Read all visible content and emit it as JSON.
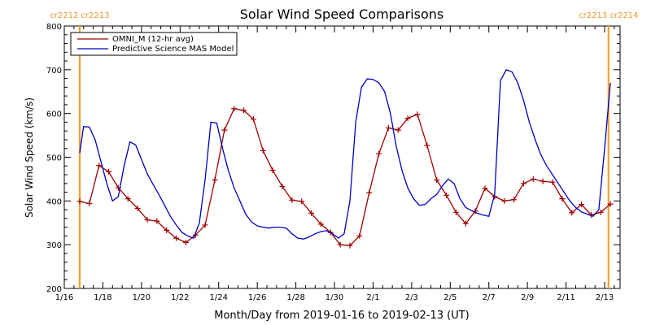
{
  "chart_data": {
    "type": "line",
    "title": "Solar Wind Speed Comparisons",
    "xlabel": "Month/Day from 2019-01-16 to 2019-02-13 (UT)",
    "ylabel": "Solar Wind Speed (km/s)",
    "ylim": [
      200,
      800
    ],
    "yticks": [
      "200",
      "300",
      "400",
      "500",
      "600",
      "700",
      "800"
    ],
    "xlim_days": [
      0,
      28.8
    ],
    "xticks": [
      {
        "day": 0,
        "label": "1/16"
      },
      {
        "day": 2,
        "label": "1/18"
      },
      {
        "day": 4,
        "label": "1/20"
      },
      {
        "day": 6,
        "label": "1/22"
      },
      {
        "day": 8,
        "label": "1/24"
      },
      {
        "day": 10,
        "label": "1/26"
      },
      {
        "day": 12,
        "label": "1/28"
      },
      {
        "day": 14,
        "label": "1/30"
      },
      {
        "day": 16,
        "label": "2/1"
      },
      {
        "day": 18,
        "label": "2/3"
      },
      {
        "day": 20,
        "label": "2/5"
      },
      {
        "day": 22,
        "label": "2/7"
      },
      {
        "day": 24,
        "label": "2/9"
      },
      {
        "day": 26,
        "label": "2/11"
      },
      {
        "day": 28,
        "label": "2/13"
      }
    ],
    "carrington_lines": [
      {
        "day": 0.8,
        "label": "cr2212 cr2213",
        "color": "#f0a030"
      },
      {
        "day": 28.2,
        "label": "cr2213 cr2214",
        "color": "#f0a030"
      }
    ],
    "legend_position": "top-left",
    "series": [
      {
        "name": "OMNI_M (12-hr avg)",
        "color": "#a00000",
        "marker": "plus",
        "x": [
          0.8,
          1.3,
          1.8,
          2.3,
          2.8,
          3.3,
          3.8,
          4.3,
          4.8,
          5.3,
          5.8,
          6.3,
          6.8,
          7.3,
          7.8,
          8.3,
          8.8,
          9.3,
          9.8,
          10.3,
          10.8,
          11.3,
          11.8,
          12.3,
          12.8,
          13.3,
          13.8,
          14.3,
          14.8,
          15.3,
          15.8,
          16.3,
          16.8,
          17.3,
          17.8,
          18.3,
          18.8,
          19.3,
          19.8,
          20.3,
          20.8,
          21.3,
          21.8,
          22.3,
          22.8,
          23.3,
          23.8,
          24.3,
          24.8,
          25.3,
          25.8,
          26.3,
          26.8,
          27.3,
          27.8,
          28.3
        ],
        "values": [
          399,
          394,
          481,
          467,
          430,
          405,
          383,
          357,
          354,
          333,
          315,
          305,
          322,
          345,
          448,
          562,
          611,
          607,
          587,
          515,
          470,
          433,
          402,
          399,
          372,
          347,
          328,
          300,
          298,
          320,
          419,
          508,
          567,
          562,
          589,
          598,
          527,
          448,
          413,
          374,
          348,
          377,
          429,
          410,
          400,
          403,
          440,
          450,
          445,
          443,
          405,
          373,
          392,
          368,
          374,
          393
        ]
      },
      {
        "name": "Predictive Science MAS Model",
        "color": "#0000c0",
        "marker": "none",
        "x": [
          0.8,
          1.0,
          1.3,
          1.6,
          1.9,
          2.2,
          2.5,
          2.8,
          3.1,
          3.4,
          3.7,
          4.0,
          4.3,
          4.6,
          4.9,
          5.2,
          5.5,
          5.8,
          6.1,
          6.4,
          6.7,
          7.0,
          7.3,
          7.6,
          7.9,
          8.2,
          8.5,
          8.8,
          9.1,
          9.4,
          9.7,
          10.0,
          10.3,
          10.6,
          10.9,
          11.2,
          11.5,
          11.8,
          12.1,
          12.4,
          12.7,
          13.0,
          13.3,
          13.6,
          13.9,
          14.2,
          14.5,
          14.8,
          15.1,
          15.4,
          15.7,
          16.0,
          16.3,
          16.6,
          16.9,
          17.2,
          17.5,
          17.8,
          18.1,
          18.4,
          18.7,
          19.0,
          19.3,
          19.6,
          19.9,
          20.2,
          20.5,
          20.8,
          21.1,
          21.4,
          21.7,
          22.0,
          22.3,
          22.6,
          22.9,
          23.2,
          23.5,
          23.8,
          24.1,
          24.4,
          24.7,
          25.0,
          25.3,
          25.6,
          25.9,
          26.2,
          26.5,
          26.8,
          27.1,
          27.4,
          27.7,
          28.0,
          28.3
        ],
        "values": [
          510,
          570,
          569,
          540,
          490,
          440,
          400,
          410,
          480,
          535,
          528,
          495,
          462,
          438,
          415,
          390,
          365,
          345,
          328,
          320,
          315,
          350,
          450,
          580,
          578,
          520,
          470,
          430,
          400,
          370,
          352,
          343,
          340,
          338,
          340,
          340,
          338,
          325,
          315,
          313,
          318,
          325,
          330,
          332,
          325,
          315,
          325,
          400,
          580,
          660,
          679,
          678,
          670,
          650,
          600,
          525,
          470,
          430,
          405,
          390,
          392,
          405,
          415,
          435,
          450,
          440,
          405,
          385,
          378,
          372,
          368,
          365,
          415,
          675,
          700,
          695,
          670,
          630,
          580,
          540,
          505,
          480,
          460,
          440,
          420,
          400,
          385,
          375,
          370,
          365,
          380,
          520,
          670
        ]
      }
    ]
  }
}
